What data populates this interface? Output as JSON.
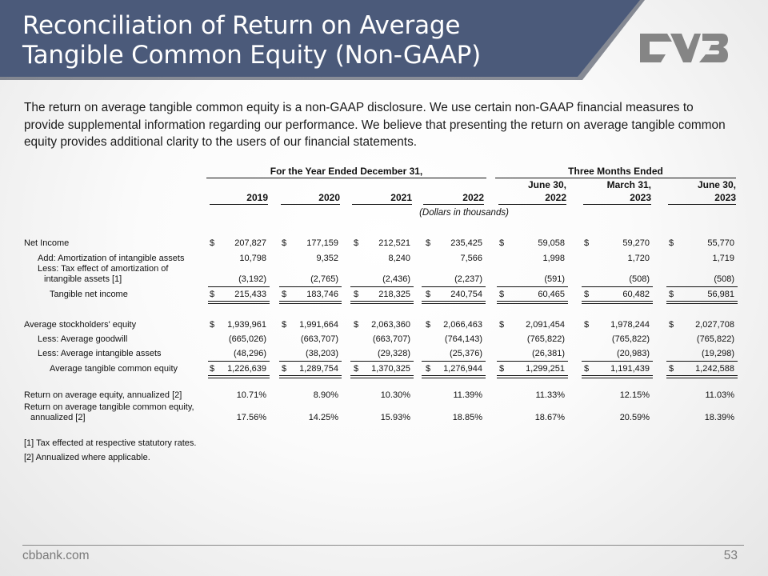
{
  "header": {
    "title_line1": "Reconciliation of Return on Average",
    "title_line2": "Tangible Common Equity (Non-GAAP)",
    "band_color": "#4b5a7a",
    "logo_color": "#858585",
    "logo_icon": "cvb-logo-icon"
  },
  "intro": "The return on average tangible common equity is a non-GAAP disclosure. We use certain non-GAAP financial measures to provide supplemental information regarding our performance. We believe that presenting the return on average tangible common equity provides additional clarity to the users of our financial statements.",
  "table": {
    "group_year": "For the Year Ended December 31,",
    "group_quarter": "Three Months Ended",
    "units": "(Dollars in thousands)",
    "columns": [
      {
        "line1": "",
        "line2": "2019"
      },
      {
        "line1": "",
        "line2": "2020"
      },
      {
        "line1": "",
        "line2": "2021"
      },
      {
        "line1": "",
        "line2": "2022"
      },
      {
        "line1": "June 30,",
        "line2": "2022"
      },
      {
        "line1": "March 31,",
        "line2": "2023"
      },
      {
        "line1": "June 30,",
        "line2": "2023"
      }
    ],
    "rows": [
      {
        "label": "Net Income",
        "values": [
          "207,827",
          "177,159",
          "212,521",
          "235,425",
          "59,058",
          "59,270",
          "55,770"
        ],
        "dollar": "$"
      },
      {
        "label": "Add: Amortization of intangible assets",
        "values": [
          "10,798",
          "9,352",
          "8,240",
          "7,566",
          "1,998",
          "1,720",
          "1,719"
        ]
      },
      {
        "label": "Less: Tax effect of amortization of",
        "label2": "intangible assets [1]",
        "values": [
          "(3,192)",
          "(2,765)",
          "(2,436)",
          "(2,237)",
          "(591)",
          "(508)",
          "(508)"
        ]
      },
      {
        "label": "Tangible net income",
        "values": [
          "215,433",
          "183,746",
          "218,325",
          "240,754",
          "60,465",
          "60,482",
          "56,981"
        ],
        "dollar": "$"
      },
      {
        "label": "Average stockholders' equity",
        "values": [
          "1,939,961",
          "1,991,664",
          "2,063,360",
          "2,066,463",
          "2,091,454",
          "1,978,244",
          "2,027,708"
        ],
        "dollar": "$"
      },
      {
        "label": "Less: Average goodwill",
        "values": [
          "(665,026)",
          "(663,707)",
          "(663,707)",
          "(764,143)",
          "(765,822)",
          "(765,822)",
          "(765,822)"
        ]
      },
      {
        "label": "Less: Average intangible assets",
        "values": [
          "(48,296)",
          "(38,203)",
          "(29,328)",
          "(25,376)",
          "(26,381)",
          "(20,983)",
          "(19,298)"
        ]
      },
      {
        "label": "Average tangible common equity",
        "values": [
          "1,226,639",
          "1,289,754",
          "1,370,325",
          "1,276,944",
          "1,299,251",
          "1,191,439",
          "1,242,588"
        ],
        "dollar": "$"
      },
      {
        "label": "Return on average equity, annualized [2]",
        "values": [
          "10.71%",
          "8.90%",
          "10.30%",
          "11.39%",
          "11.33%",
          "12.15%",
          "11.03%"
        ]
      },
      {
        "label": "Return on average tangible common equity,",
        "label2": "annualized [2]",
        "values": [
          "17.56%",
          "14.25%",
          "15.93%",
          "18.85%",
          "18.67%",
          "20.59%",
          "18.39%"
        ]
      }
    ],
    "footnotes": [
      "[1] Tax effected at respective statutory rates.",
      "[2] Annualized where applicable."
    ]
  },
  "footer": {
    "site": "cbbank.com",
    "page": "53"
  }
}
